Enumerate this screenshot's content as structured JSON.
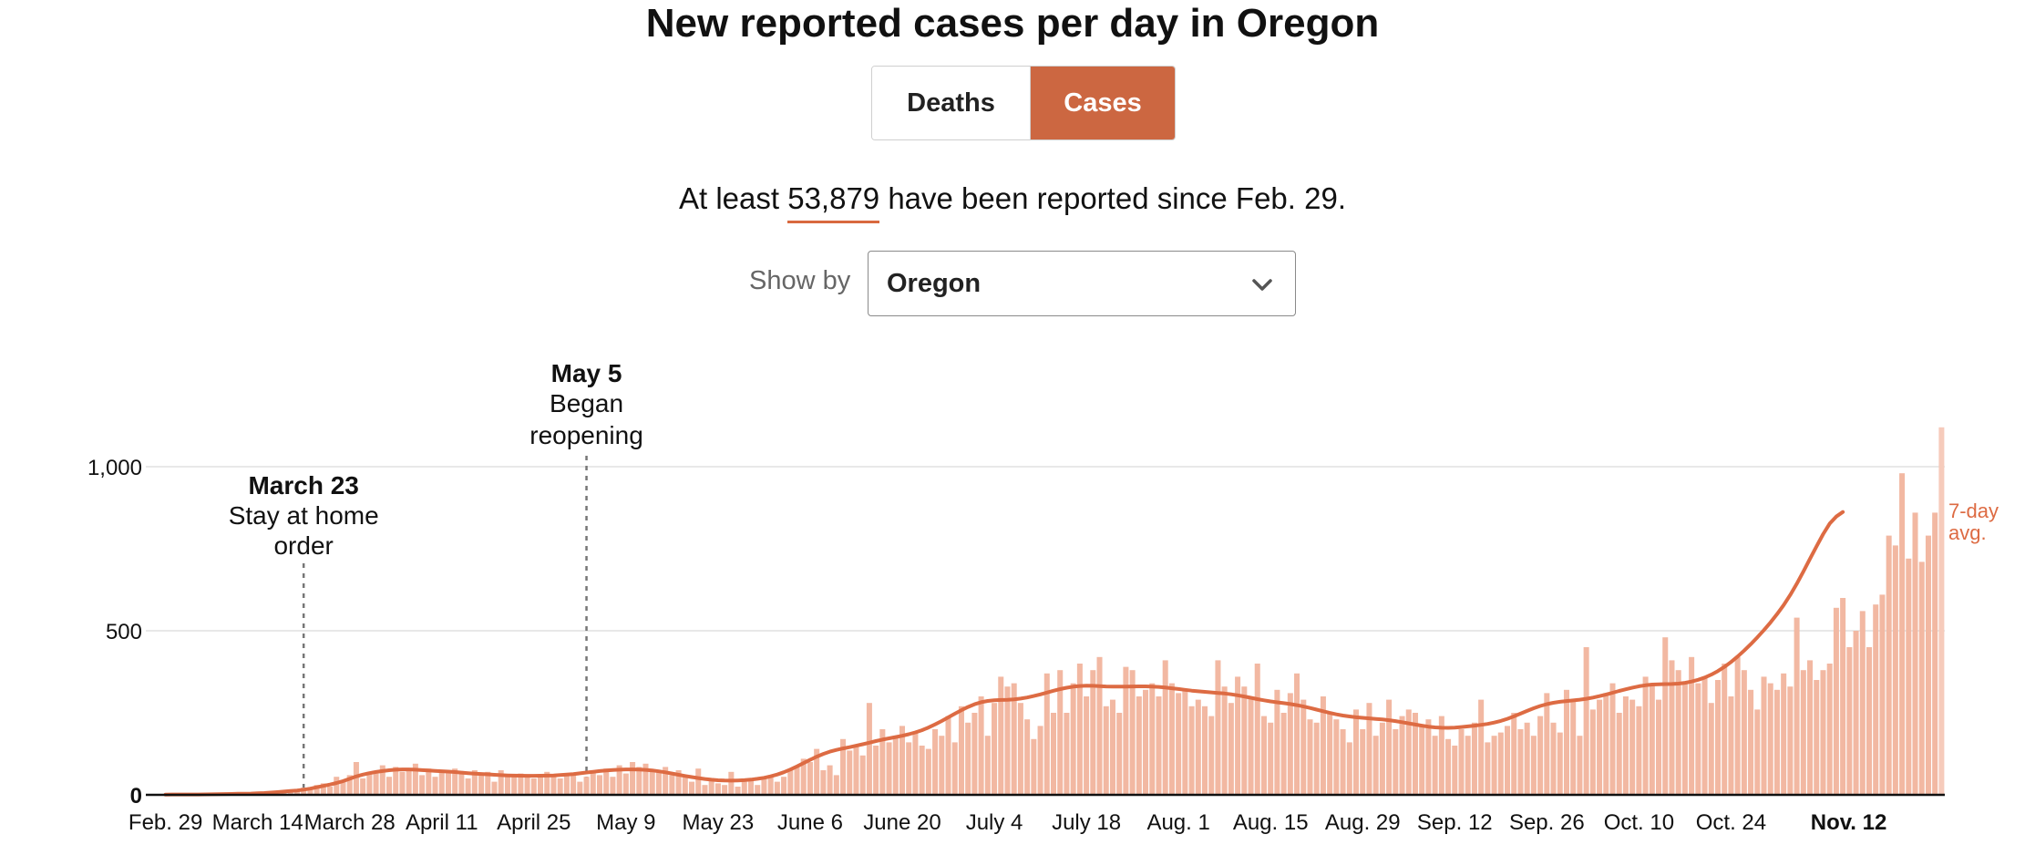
{
  "header": {
    "title": "New reported cases per day in Oregon",
    "toggle": {
      "deaths_label": "Deaths",
      "cases_label": "Cases",
      "selected": "Cases"
    },
    "summary_prefix": "At least",
    "summary_number": "53,879",
    "summary_suffix": "have been reported since Feb. 29.",
    "show_by_label": "Show by",
    "show_by_value": "Oregon"
  },
  "colors": {
    "accent": "#cc6741",
    "bar": "#f2b8a2",
    "line": "#dd6b43",
    "last_bar": "#f6cbbb"
  },
  "chart_data": {
    "type": "bar",
    "title": "New reported cases per day in Oregon",
    "ylim": [
      0,
      1000
    ],
    "yticks": [
      {
        "value": 0,
        "label": "0"
      },
      {
        "value": 500,
        "label": "500"
      },
      {
        "value": 1000,
        "label": "1,000"
      }
    ],
    "xticks": [
      {
        "day": 0,
        "label": "Feb. 29",
        "bold": false
      },
      {
        "day": 14,
        "label": "March 14",
        "bold": false
      },
      {
        "day": 28,
        "label": "March 28",
        "bold": false
      },
      {
        "day": 42,
        "label": "April 11",
        "bold": false
      },
      {
        "day": 56,
        "label": "April 25",
        "bold": false
      },
      {
        "day": 70,
        "label": "May 9",
        "bold": false
      },
      {
        "day": 84,
        "label": "May 23",
        "bold": false
      },
      {
        "day": 98,
        "label": "June 6",
        "bold": false
      },
      {
        "day": 112,
        "label": "June 20",
        "bold": false
      },
      {
        "day": 126,
        "label": "July 4",
        "bold": false
      },
      {
        "day": 140,
        "label": "July 18",
        "bold": false
      },
      {
        "day": 154,
        "label": "Aug. 1",
        "bold": false
      },
      {
        "day": 168,
        "label": "Aug. 15",
        "bold": false
      },
      {
        "day": 182,
        "label": "Aug. 29",
        "bold": false
      },
      {
        "day": 196,
        "label": "Sep. 12",
        "bold": false
      },
      {
        "day": 210,
        "label": "Sep. 26",
        "bold": false
      },
      {
        "day": 224,
        "label": "Oct. 10",
        "bold": false
      },
      {
        "day": 238,
        "label": "Oct. 24",
        "bold": false
      },
      {
        "day": 257,
        "label": "Nov. 12",
        "bold": true
      }
    ],
    "annotations": [
      {
        "day": 21,
        "date": "March 23",
        "line1": "Stay at home",
        "line2": "order"
      },
      {
        "day": 64,
        "date": "May 5",
        "line1": "Began",
        "line2": "reopening"
      }
    ],
    "line_label_1": "7-day",
    "line_label_2": "avg.",
    "series": [
      {
        "name": "Daily new cases",
        "values": [
          1,
          0,
          2,
          1,
          1,
          2,
          1,
          2,
          3,
          2,
          4,
          3,
          5,
          4,
          8,
          6,
          10,
          9,
          12,
          15,
          18,
          22,
          20,
          30,
          35,
          25,
          55,
          45,
          60,
          100,
          50,
          70,
          65,
          90,
          55,
          85,
          70,
          75,
          95,
          60,
          80,
          55,
          75,
          70,
          80,
          65,
          50,
          75,
          60,
          70,
          40,
          75,
          60,
          55,
          65,
          60,
          50,
          55,
          70,
          60,
          50,
          65,
          60,
          40,
          55,
          75,
          60,
          80,
          55,
          90,
          65,
          100,
          85,
          95,
          75,
          70,
          85,
          60,
          75,
          55,
          40,
          80,
          30,
          50,
          35,
          30,
          70,
          25,
          40,
          45,
          30,
          50,
          60,
          40,
          55,
          75,
          85,
          110,
          100,
          140,
          75,
          90,
          60,
          170,
          135,
          150,
          120,
          280,
          150,
          200,
          160,
          180,
          210,
          160,
          190,
          150,
          140,
          200,
          180,
          240,
          160,
          270,
          220,
          250,
          300,
          180,
          280,
          360,
          330,
          340,
          280,
          230,
          170,
          210,
          370,
          250,
          380,
          250,
          340,
          400,
          300,
          380,
          420,
          270,
          290,
          250,
          390,
          380,
          300,
          320,
          340,
          300,
          410,
          340,
          310,
          320,
          270,
          290,
          270,
          240,
          410,
          330,
          280,
          360,
          330,
          300,
          400,
          240,
          220,
          320,
          250,
          310,
          370,
          290,
          230,
          220,
          300,
          250,
          230,
          200,
          160,
          260,
          200,
          280,
          180,
          220,
          290,
          200,
          240,
          260,
          250,
          210,
          230,
          180,
          240,
          170,
          150,
          200,
          180,
          220,
          290,
          160,
          180,
          190,
          210,
          250,
          200,
          220,
          180,
          240,
          310,
          220,
          190,
          320,
          290,
          180,
          450,
          260,
          290,
          310,
          340,
          250,
          300,
          290,
          270,
          360,
          340,
          290,
          480,
          410,
          380,
          340,
          420,
          340,
          360,
          280,
          350,
          400,
          300,
          420,
          380,
          320,
          260,
          360,
          340,
          320,
          370,
          330,
          540,
          380,
          410,
          350,
          380,
          400,
          570,
          600,
          450,
          500,
          560,
          450,
          580,
          610,
          790,
          760,
          980,
          720,
          860,
          710,
          790,
          860,
          1120
        ]
      },
      {
        "name": "7-day avg.",
        "values": [
          0.9,
          1.0,
          1.0,
          1.1,
          1.1,
          1.2,
          1.3,
          1.6,
          2.0,
          2.4,
          2.8,
          3.2,
          3.6,
          4.0,
          4.6,
          5.6,
          6.9,
          8.4,
          10.0,
          11.6,
          13.4,
          15.8,
          19.0,
          23.0,
          27.2,
          31.4,
          36.2,
          42.0,
          49.0,
          56.2,
          61.8,
          66.2,
          69.6,
          72.4,
          75.0,
          76.8,
          77.6,
          77.4,
          76.6,
          75.4,
          74.2,
          73.0,
          72.0,
          70.8,
          69.4,
          67.8,
          66.2,
          64.8,
          63.6,
          62.4,
          61.2,
          60.0,
          59.2,
          58.6,
          58.2,
          58.0,
          58.0,
          58.2,
          58.6,
          59.2,
          60.2,
          61.6,
          63.4,
          65.6,
          68.0,
          70.4,
          72.6,
          74.4,
          75.8,
          76.8,
          77.4,
          77.6,
          77.2,
          76.2,
          74.4,
          71.8,
          68.6,
          65.0,
          61.2,
          57.6,
          54.2,
          51.0,
          48.2,
          46.0,
          44.4,
          43.6,
          43.4,
          43.8,
          44.8,
          46.4,
          48.8,
          52.0,
          56.4,
          62.0,
          69.0,
          77.2,
          86.6,
          96.6,
          106.8,
          116.4,
          124.8,
          131.6,
          137.0,
          141.4,
          145.4,
          149.6,
          154.2,
          159.0,
          163.8,
          168.2,
          172.2,
          176.0,
          180.0,
          184.6,
          190.2,
          197.0,
          205.2,
          214.6,
          225.0,
          236.0,
          247.2,
          258.0,
          267.8,
          276.0,
          282.2,
          286.2,
          288.4,
          289.2,
          289.8,
          291.0,
          293.2,
          296.6,
          301.0,
          306.2,
          311.8,
          317.2,
          322.2,
          326.4,
          329.6,
          331.6,
          332.4,
          332.2,
          331.4,
          330.4,
          329.8,
          329.6,
          329.8,
          330.2,
          330.6,
          330.6,
          330.0,
          328.8,
          327.0,
          324.8,
          322.4,
          320.0,
          317.6,
          315.6,
          313.8,
          312.2,
          310.6,
          308.8,
          306.4,
          303.4,
          299.8,
          295.8,
          291.8,
          288.0,
          284.8,
          282.0,
          279.4,
          276.6,
          273.2,
          269.2,
          264.6,
          259.6,
          254.6,
          249.8,
          245.4,
          241.8,
          238.8,
          236.4,
          234.6,
          233.0,
          231.4,
          229.6,
          227.4,
          224.6,
          221.4,
          217.8,
          214.2,
          210.8,
          207.8,
          205.6,
          204.4,
          204.2,
          205.0,
          206.6,
          208.6,
          210.8,
          213.2,
          216.2,
          220.2,
          225.4,
          231.8,
          239.2,
          247.4,
          255.8,
          263.8,
          270.8,
          276.4,
          280.6,
          283.6,
          285.8,
          287.8,
          290.0,
          292.8,
          296.4,
          300.8,
          305.8,
          311.2,
          316.6,
          321.8,
          326.6,
          330.8,
          334.0,
          336.0,
          337.0,
          337.4,
          337.8,
          339.0,
          341.4,
          345.2,
          350.6,
          357.6,
          366.4,
          377.2,
          390.0,
          404.8,
          421.4,
          439.6,
          459.2,
          480.0,
          502.0,
          525.4,
          550.6,
          578.4,
          609.2,
          643.4,
          680.4,
          719.0,
          757.6,
          794.4,
          826.8,
          848.0,
          862.0
        ]
      }
    ]
  }
}
